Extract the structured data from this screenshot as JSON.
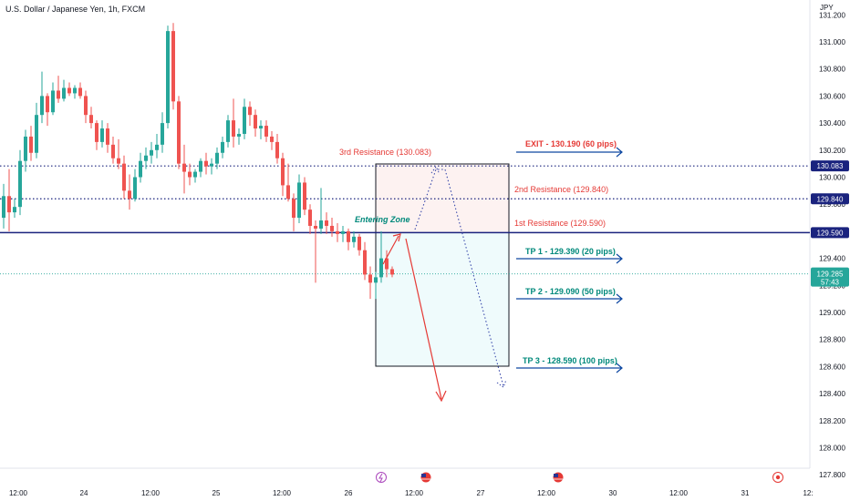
{
  "header": {
    "title": "U.S. Dollar / Japanese Yen, 1h, FXCM",
    "unit": "JPY"
  },
  "chart_data": {
    "type": "candlestick",
    "symbol": "USD/JPY",
    "interval": "1h",
    "ylim": [
      127.75,
      131.25
    ],
    "y_ticks": [
      "131.200",
      "131.000",
      "130.800",
      "130.600",
      "130.400",
      "130.200",
      "130.000",
      "129.800",
      "129.600",
      "129.400",
      "129.200",
      "129.000",
      "128.800",
      "128.600",
      "128.400",
      "128.200",
      "128.000",
      "127.800"
    ],
    "x_ticks": [
      "12:00",
      "24",
      "12:00",
      "25",
      "12:00",
      "26",
      "12:00",
      "27",
      "12:00",
      "30",
      "12:00",
      "31",
      "12:"
    ],
    "colors": {
      "up": "#26a69a",
      "down": "#ef5350",
      "levels": "#1a237e",
      "annotation_red": "#e53935",
      "annotation_green": "#00897b",
      "arrow_blue": "#0d47a1"
    },
    "candles": [
      {
        "o": 129.7,
        "h": 129.95,
        "l": 129.62,
        "c": 129.86
      },
      {
        "o": 129.86,
        "h": 130.06,
        "l": 129.6,
        "c": 129.74
      },
      {
        "o": 129.74,
        "h": 129.84,
        "l": 129.7,
        "c": 129.78
      },
      {
        "o": 129.78,
        "h": 130.2,
        "l": 129.72,
        "c": 130.12
      },
      {
        "o": 130.12,
        "h": 130.35,
        "l": 130.04,
        "c": 130.3
      },
      {
        "o": 130.3,
        "h": 130.38,
        "l": 130.12,
        "c": 130.18
      },
      {
        "o": 130.18,
        "h": 130.55,
        "l": 130.14,
        "c": 130.46
      },
      {
        "o": 130.46,
        "h": 130.78,
        "l": 130.4,
        "c": 130.6
      },
      {
        "o": 130.6,
        "h": 130.62,
        "l": 130.38,
        "c": 130.48
      },
      {
        "o": 130.48,
        "h": 130.7,
        "l": 130.46,
        "c": 130.64
      },
      {
        "o": 130.64,
        "h": 130.75,
        "l": 130.55,
        "c": 130.58
      },
      {
        "o": 130.58,
        "h": 130.72,
        "l": 130.56,
        "c": 130.66
      },
      {
        "o": 130.66,
        "h": 130.7,
        "l": 130.6,
        "c": 130.62
      },
      {
        "o": 130.62,
        "h": 130.68,
        "l": 130.58,
        "c": 130.66
      },
      {
        "o": 130.66,
        "h": 130.7,
        "l": 130.58,
        "c": 130.6
      },
      {
        "o": 130.6,
        "h": 130.64,
        "l": 130.4,
        "c": 130.46
      },
      {
        "o": 130.46,
        "h": 130.52,
        "l": 130.36,
        "c": 130.4
      },
      {
        "o": 130.4,
        "h": 130.42,
        "l": 130.2,
        "c": 130.26
      },
      {
        "o": 130.26,
        "h": 130.42,
        "l": 130.22,
        "c": 130.36
      },
      {
        "o": 130.36,
        "h": 130.4,
        "l": 130.18,
        "c": 130.24
      },
      {
        "o": 130.24,
        "h": 130.3,
        "l": 130.1,
        "c": 130.14
      },
      {
        "o": 130.14,
        "h": 130.28,
        "l": 130.06,
        "c": 130.1
      },
      {
        "o": 130.1,
        "h": 130.16,
        "l": 129.84,
        "c": 129.9
      },
      {
        "o": 129.9,
        "h": 130.02,
        "l": 129.76,
        "c": 129.84
      },
      {
        "o": 129.84,
        "h": 130.06,
        "l": 129.82,
        "c": 130.0
      },
      {
        "o": 130.0,
        "h": 130.18,
        "l": 129.96,
        "c": 130.12
      },
      {
        "o": 130.12,
        "h": 130.22,
        "l": 130.06,
        "c": 130.16
      },
      {
        "o": 130.16,
        "h": 130.26,
        "l": 130.1,
        "c": 130.2
      },
      {
        "o": 130.2,
        "h": 130.32,
        "l": 130.14,
        "c": 130.24
      },
      {
        "o": 130.24,
        "h": 130.48,
        "l": 130.18,
        "c": 130.4
      },
      {
        "o": 130.4,
        "h": 131.12,
        "l": 130.36,
        "c": 131.08
      },
      {
        "o": 131.08,
        "h": 131.14,
        "l": 130.5,
        "c": 130.56
      },
      {
        "o": 130.56,
        "h": 130.6,
        "l": 130.06,
        "c": 130.1
      },
      {
        "o": 130.1,
        "h": 130.24,
        "l": 129.88,
        "c": 130.04
      },
      {
        "o": 130.04,
        "h": 130.1,
        "l": 129.94,
        "c": 130.0
      },
      {
        "o": 130.0,
        "h": 130.06,
        "l": 129.96,
        "c": 130.04
      },
      {
        "o": 130.04,
        "h": 130.14,
        "l": 130.0,
        "c": 130.12
      },
      {
        "o": 130.12,
        "h": 130.18,
        "l": 130.02,
        "c": 130.08
      },
      {
        "o": 130.08,
        "h": 130.14,
        "l": 130.02,
        "c": 130.1
      },
      {
        "o": 130.1,
        "h": 130.22,
        "l": 130.06,
        "c": 130.18
      },
      {
        "o": 130.18,
        "h": 130.3,
        "l": 130.14,
        "c": 130.26
      },
      {
        "o": 130.26,
        "h": 130.46,
        "l": 130.22,
        "c": 130.42
      },
      {
        "o": 130.42,
        "h": 130.58,
        "l": 130.22,
        "c": 130.3
      },
      {
        "o": 130.3,
        "h": 130.36,
        "l": 130.24,
        "c": 130.32
      },
      {
        "o": 130.32,
        "h": 130.58,
        "l": 130.28,
        "c": 130.52
      },
      {
        "o": 130.52,
        "h": 130.56,
        "l": 130.38,
        "c": 130.46
      },
      {
        "o": 130.46,
        "h": 130.5,
        "l": 130.3,
        "c": 130.36
      },
      {
        "o": 130.36,
        "h": 130.42,
        "l": 130.28,
        "c": 130.38
      },
      {
        "o": 130.38,
        "h": 130.42,
        "l": 130.26,
        "c": 130.3
      },
      {
        "o": 130.3,
        "h": 130.34,
        "l": 130.2,
        "c": 130.26
      },
      {
        "o": 130.26,
        "h": 130.32,
        "l": 130.1,
        "c": 130.14
      },
      {
        "o": 130.14,
        "h": 130.18,
        "l": 129.86,
        "c": 129.94
      },
      {
        "o": 129.94,
        "h": 130.1,
        "l": 129.82,
        "c": 129.84
      },
      {
        "o": 129.84,
        "h": 129.88,
        "l": 129.6,
        "c": 129.7
      },
      {
        "o": 129.7,
        "h": 130.02,
        "l": 129.66,
        "c": 129.96
      },
      {
        "o": 129.96,
        "h": 130.0,
        "l": 129.72,
        "c": 129.76
      },
      {
        "o": 129.76,
        "h": 129.8,
        "l": 129.58,
        "c": 129.64
      },
      {
        "o": 129.64,
        "h": 129.68,
        "l": 129.22,
        "c": 129.62
      },
      {
        "o": 129.62,
        "h": 129.92,
        "l": 129.58,
        "c": 129.68
      },
      {
        "o": 129.68,
        "h": 129.74,
        "l": 129.58,
        "c": 129.64
      },
      {
        "o": 129.64,
        "h": 129.7,
        "l": 129.56,
        "c": 129.6
      },
      {
        "o": 129.6,
        "h": 129.66,
        "l": 129.52,
        "c": 129.58
      },
      {
        "o": 129.58,
        "h": 129.64,
        "l": 129.52,
        "c": 129.6
      },
      {
        "o": 129.6,
        "h": 129.62,
        "l": 129.46,
        "c": 129.52
      },
      {
        "o": 129.52,
        "h": 129.6,
        "l": 129.48,
        "c": 129.56
      },
      {
        "o": 129.56,
        "h": 129.58,
        "l": 129.42,
        "c": 129.46
      },
      {
        "o": 129.46,
        "h": 129.52,
        "l": 129.24,
        "c": 129.28
      },
      {
        "o": 129.28,
        "h": 129.34,
        "l": 129.1,
        "c": 129.22
      },
      {
        "o": 129.22,
        "h": 129.3,
        "l": 129.1,
        "c": 129.26
      },
      {
        "o": 129.26,
        "h": 129.6,
        "l": 129.22,
        "c": 129.4
      },
      {
        "o": 129.4,
        "h": 129.46,
        "l": 129.26,
        "c": 129.32
      },
      {
        "o": 129.32,
        "h": 129.34,
        "l": 129.26,
        "c": 129.28
      }
    ],
    "levels": [
      {
        "price": 130.083,
        "style": "dotted",
        "badge": "130.083"
      },
      {
        "price": 129.84,
        "style": "dotted",
        "badge": "129.840"
      },
      {
        "price": 129.59,
        "style": "solid",
        "badge": "129.590"
      },
      {
        "price": 129.285,
        "style": "dotted",
        "badge": "129.285",
        "countdown": "57:43",
        "current": true
      }
    ],
    "annotations": {
      "res3": "3rd Resistance (130.083)",
      "res2": "2nd Resistance (129.840)",
      "res1": "1st Resistance (129.590)",
      "entering": "Entering Zone",
      "exit": "EXIT - 130.190 (60 pips)",
      "tp1": "TP 1 - 129.390 (20 pips)",
      "tp2": "TP 2 - 129.090 (50 pips)",
      "tp3": "TP 3 - 128.590 (100 pips)"
    },
    "event_icons": [
      "lightning-icon",
      "us-flag-icon",
      "us-flag-icon",
      "target-icon"
    ]
  }
}
